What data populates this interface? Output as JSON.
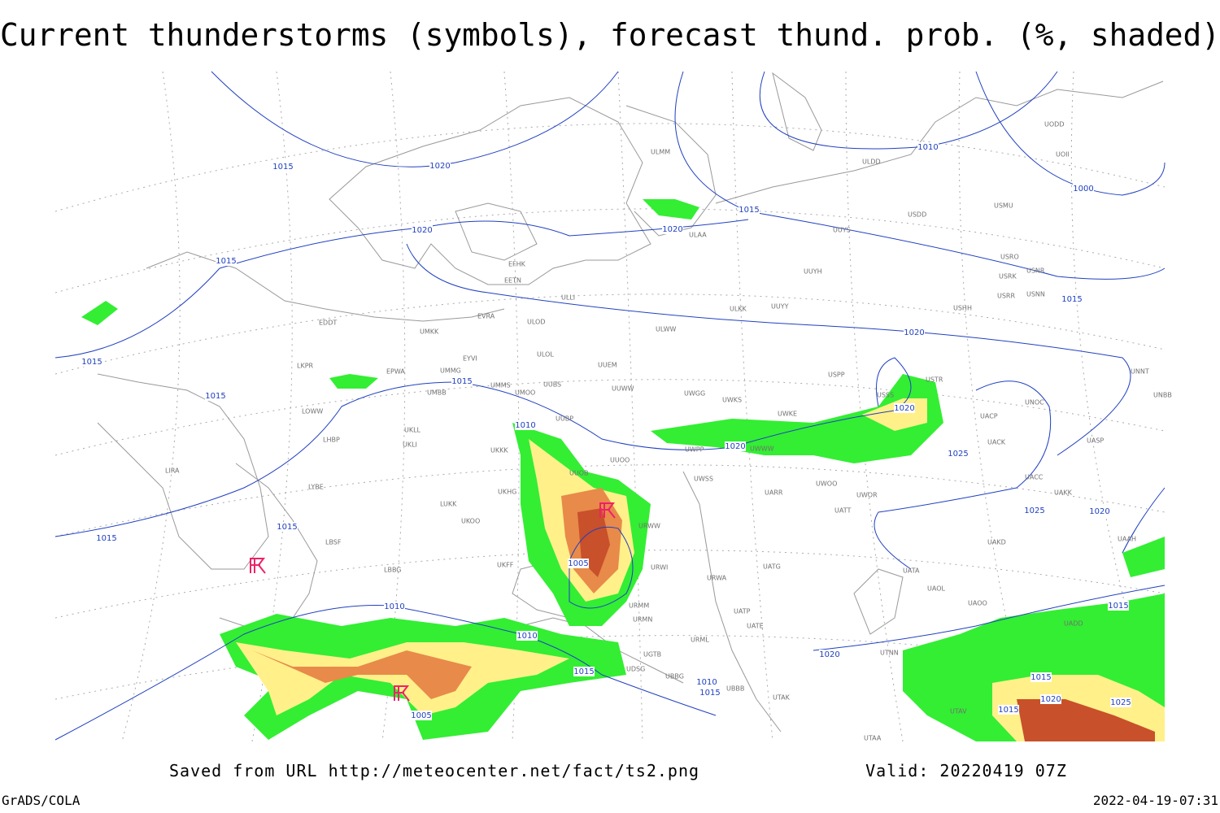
{
  "header": {
    "title": "Current thunderstorms (symbols), forecast thund. prob. (%, shaded)"
  },
  "map": {
    "isobar_labels": [
      "1015",
      "1020",
      "1020",
      "1015",
      "1015",
      "1015",
      "1015",
      "1010",
      "1020",
      "1020",
      "1025",
      "1025",
      "1020",
      "1015",
      "1015",
      "1005",
      "1010",
      "1010",
      "1015",
      "1010",
      "1015",
      "1005",
      "1020",
      "1020",
      "1015",
      "1025",
      "1015",
      "1015",
      "1015",
      "1020",
      "1010",
      "1000",
      "1015",
      "1020"
    ],
    "stations": [
      "ULMM",
      "ULDD",
      "UODD",
      "UOII",
      "USDD",
      "UUYS",
      "USMU",
      "ULAA",
      "EFHK",
      "EETN",
      "ULLI",
      "UUYH",
      "USRO",
      "USRK",
      "USNR",
      "USRR",
      "USNN",
      "USHH",
      "EVRA",
      "ULOD",
      "ULKK",
      "UUYY",
      "EDDT",
      "UMKK",
      "ULWW",
      "EYVI",
      "ULOL",
      "UUEM",
      "LKPR",
      "EPWA",
      "UMMG",
      "UMMS",
      "UUBS",
      "UUWW",
      "UWGG",
      "USPP",
      "USTR",
      "UNNT",
      "UNBB",
      "UMBB",
      "UMOO",
      "UWKS",
      "USSS",
      "UNOC",
      "LOWW",
      "UWKE",
      "UACP",
      "UUBP",
      "UKLL",
      "LHBP",
      "UKLI",
      "UKKK",
      "UWPP",
      "UWWW",
      "UACK",
      "UASP",
      "UUOO",
      "UUOB",
      "LIRA",
      "UWSS",
      "UACC",
      "LYBE",
      "UKHG",
      "UARR",
      "UWOO",
      "UWOR",
      "UAKK",
      "LUKK",
      "UKOO",
      "UATT",
      "UAAH",
      "LBSF",
      "UAKD",
      "URWW",
      "LBBG",
      "UKFF",
      "URWI",
      "UATG",
      "UATA",
      "URWA",
      "UAOL",
      "UAOO",
      "URMM",
      "UATP",
      "URMN",
      "UATE",
      "UADD",
      "URML",
      "UGTB",
      "UTNN",
      "UDSG",
      "UBBG",
      "UBBB",
      "UTAK",
      "UTAV",
      "UTAA"
    ]
  },
  "footer": {
    "source": "Saved from URL http://meteocenter.net/fact/ts2.png",
    "valid": "Valid: 20220419 07Z",
    "software": "GrADS/COLA",
    "timestamp": "2022-04-19-07:31"
  }
}
